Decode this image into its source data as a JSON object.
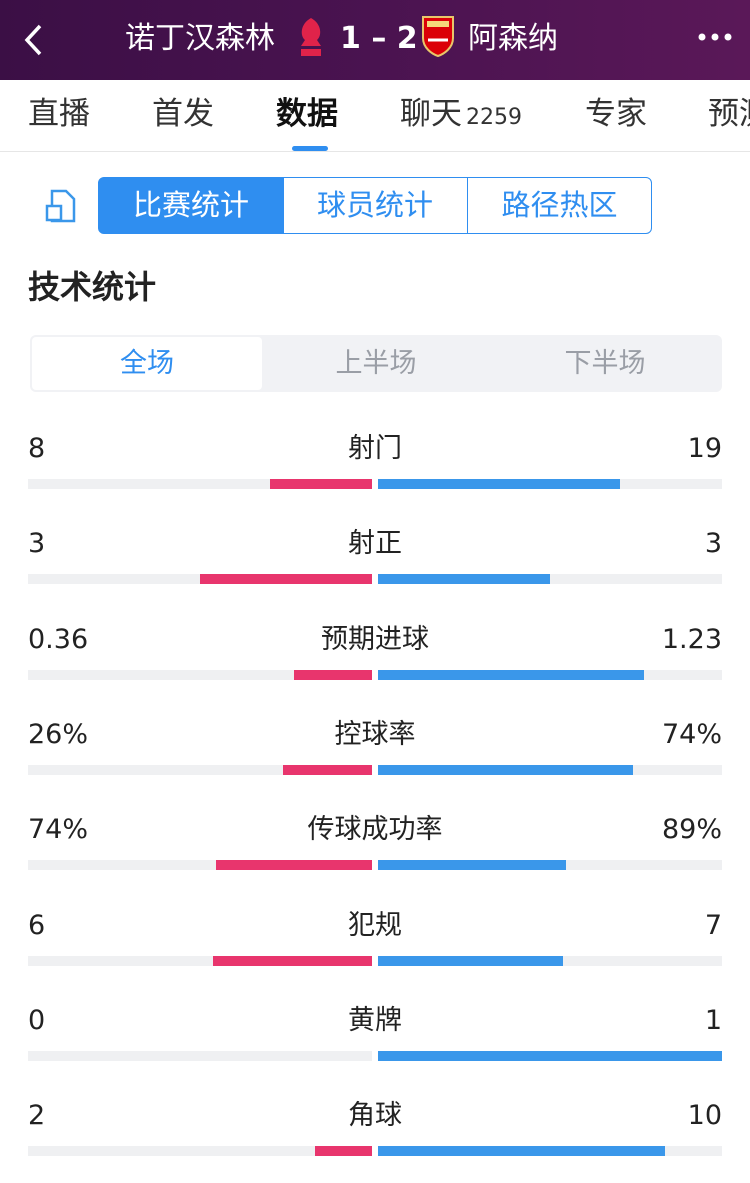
{
  "header": {
    "home": "诺丁汉森林",
    "score": "1 – 2",
    "away": "阿森纳"
  },
  "tabs": [
    "直播",
    "首发",
    "数据",
    "聊天",
    "专家",
    "预测"
  ],
  "chat_count": "2259",
  "sub_tabs": [
    "比赛统计",
    "球员统计",
    "路径热区"
  ],
  "section_title": "技术统计",
  "periods": [
    "全场",
    "上半场",
    "下半场"
  ],
  "stats": {
    "rows": [
      {
        "name": "射门",
        "home": 8,
        "away": 19
      },
      {
        "name": "射正",
        "home": 3,
        "away": 3
      },
      {
        "name": "预期进球",
        "home": 0.36,
        "away": 1.23
      },
      {
        "name": "控球率",
        "home": 26,
        "away": 74,
        "home_label": "26%",
        "away_label": "74%"
      },
      {
        "name": "传球成功率",
        "home": 74,
        "away": 89,
        "home_label": "74%",
        "away_label": "89%"
      },
      {
        "name": "犯规",
        "home": 6,
        "away": 7
      },
      {
        "name": "黄牌",
        "home": 0,
        "away": 1
      },
      {
        "name": "角球",
        "home": 2,
        "away": 10
      }
    ],
    "colors": {
      "home": "#e8356d",
      "away": "#3a97ea"
    }
  }
}
